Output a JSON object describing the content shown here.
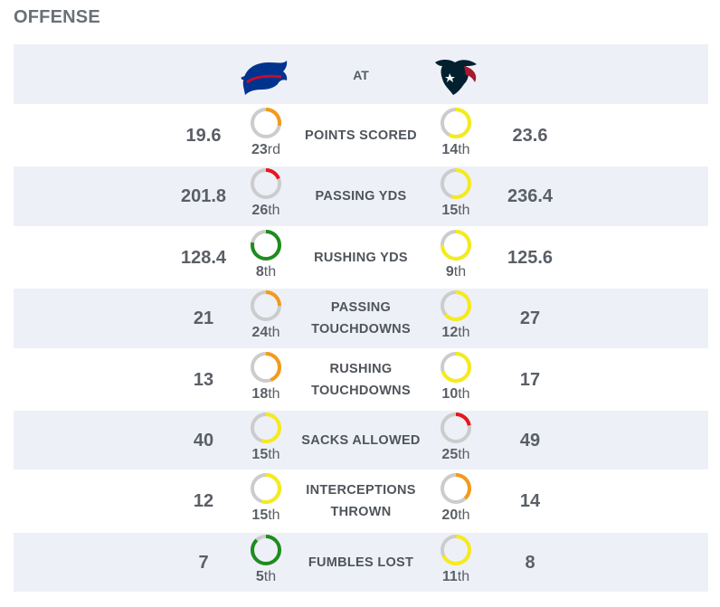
{
  "section_title": "OFFENSE",
  "header": {
    "at_label": "AT",
    "away_logo": "buffalo-icon",
    "home_logo": "bull-head-icon"
  },
  "colors": {
    "row_shade": "#eef0f8",
    "ring_track": "#cccccc",
    "green": "#1e8c1e",
    "yellow": "#f5eb1a",
    "orange": "#f39a1b",
    "red": "#e8161b"
  },
  "rows": [
    {
      "label": "POINTS SCORED",
      "label_lines": [
        "POINTS SCORED"
      ],
      "away": {
        "value": "19.6",
        "rank_num": "23",
        "rank_sfx": "rd",
        "fill": 0.28,
        "color": "orange"
      },
      "home": {
        "value": "23.6",
        "rank_num": "14",
        "rank_sfx": "th",
        "fill": 0.58,
        "color": "yellow"
      }
    },
    {
      "label": "PASSING YDS",
      "label_lines": [
        "PASSING YDS"
      ],
      "away": {
        "value": "201.8",
        "rank_num": "26",
        "rank_sfx": "th",
        "fill": 0.19,
        "color": "red"
      },
      "home": {
        "value": "236.4",
        "rank_num": "15",
        "rank_sfx": "th",
        "fill": 0.55,
        "color": "yellow"
      }
    },
    {
      "label": "RUSHING YDS",
      "label_lines": [
        "RUSHING YDS"
      ],
      "away": {
        "value": "128.4",
        "rank_num": "8",
        "rank_sfx": "th",
        "fill": 0.78,
        "color": "green"
      },
      "home": {
        "value": "125.6",
        "rank_num": "9",
        "rank_sfx": "th",
        "fill": 0.75,
        "color": "yellow"
      }
    },
    {
      "label": "PASSING TOUCHDOWNS",
      "label_lines": [
        "PASSING",
        "TOUCHDOWNS"
      ],
      "away": {
        "value": "21",
        "rank_num": "24",
        "rank_sfx": "th",
        "fill": 0.25,
        "color": "orange"
      },
      "home": {
        "value": "27",
        "rank_num": "12",
        "rank_sfx": "th",
        "fill": 0.64,
        "color": "yellow"
      }
    },
    {
      "label": "RUSHING TOUCHDOWNS",
      "label_lines": [
        "RUSHING",
        "TOUCHDOWNS"
      ],
      "away": {
        "value": "13",
        "rank_num": "18",
        "rank_sfx": "th",
        "fill": 0.44,
        "color": "orange"
      },
      "home": {
        "value": "17",
        "rank_num": "10",
        "rank_sfx": "th",
        "fill": 0.7,
        "color": "yellow"
      }
    },
    {
      "label": "SACKS ALLOWED",
      "label_lines": [
        "SACKS ALLOWED"
      ],
      "away": {
        "value": "40",
        "rank_num": "15",
        "rank_sfx": "th",
        "fill": 0.55,
        "color": "yellow"
      },
      "home": {
        "value": "49",
        "rank_num": "25",
        "rank_sfx": "th",
        "fill": 0.22,
        "color": "red"
      }
    },
    {
      "label": "INTERCEPTIONS THROWN",
      "label_lines": [
        "INTERCEPTIONS",
        "THROWN"
      ],
      "away": {
        "value": "12",
        "rank_num": "15",
        "rank_sfx": "th",
        "fill": 0.55,
        "color": "yellow"
      },
      "home": {
        "value": "14",
        "rank_num": "20",
        "rank_sfx": "th",
        "fill": 0.38,
        "color": "orange"
      }
    },
    {
      "label": "FUMBLES LOST",
      "label_lines": [
        "FUMBLES LOST"
      ],
      "away": {
        "value": "7",
        "rank_num": "5",
        "rank_sfx": "th",
        "fill": 0.88,
        "color": "green"
      },
      "home": {
        "value": "8",
        "rank_num": "11",
        "rank_sfx": "th",
        "fill": 0.68,
        "color": "yellow"
      }
    }
  ]
}
